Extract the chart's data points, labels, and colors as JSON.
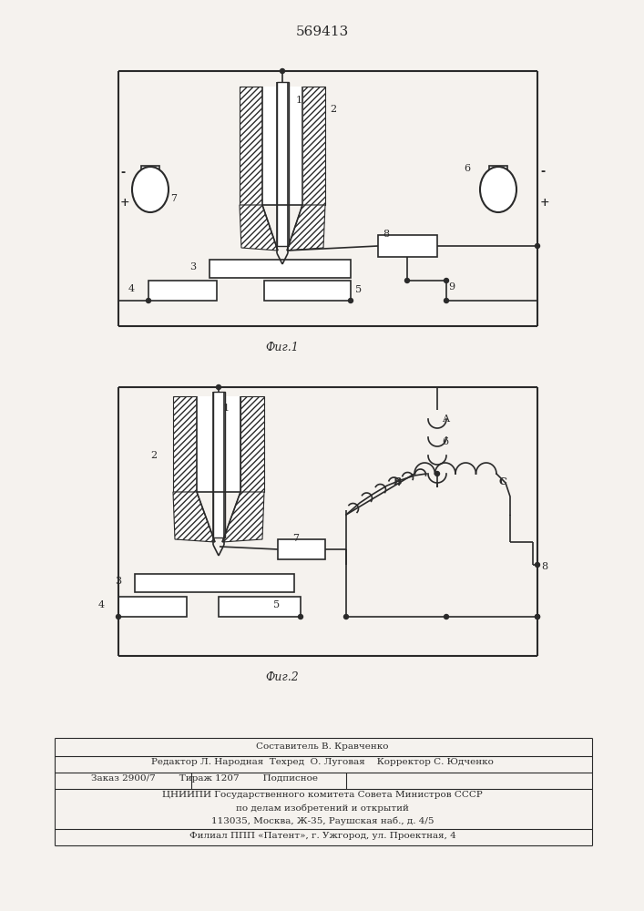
{
  "title": "569413",
  "fig1_label": "Фиг.1",
  "fig2_label": "Фиг.2",
  "bg_color": "#f5f2ee",
  "line_color": "#2a2a2a",
  "footer_lines": [
    "Составитель В. Кравченко",
    "Редактор Л. Народная  Техред  О. Луговая    Корректор С. Юдченко",
    "Заказ 2900/7        Тираж 1207        Подписное",
    "ЦНИИПИ Государственного комитета Совета Министров СССР",
    "по делам изобретений и открытий",
    "113035, Москва, Ж-35, Раушская наб., д. 4/5",
    "Филиал ППП «Патент», г. Ужгород, ул. Проектная, 4"
  ]
}
